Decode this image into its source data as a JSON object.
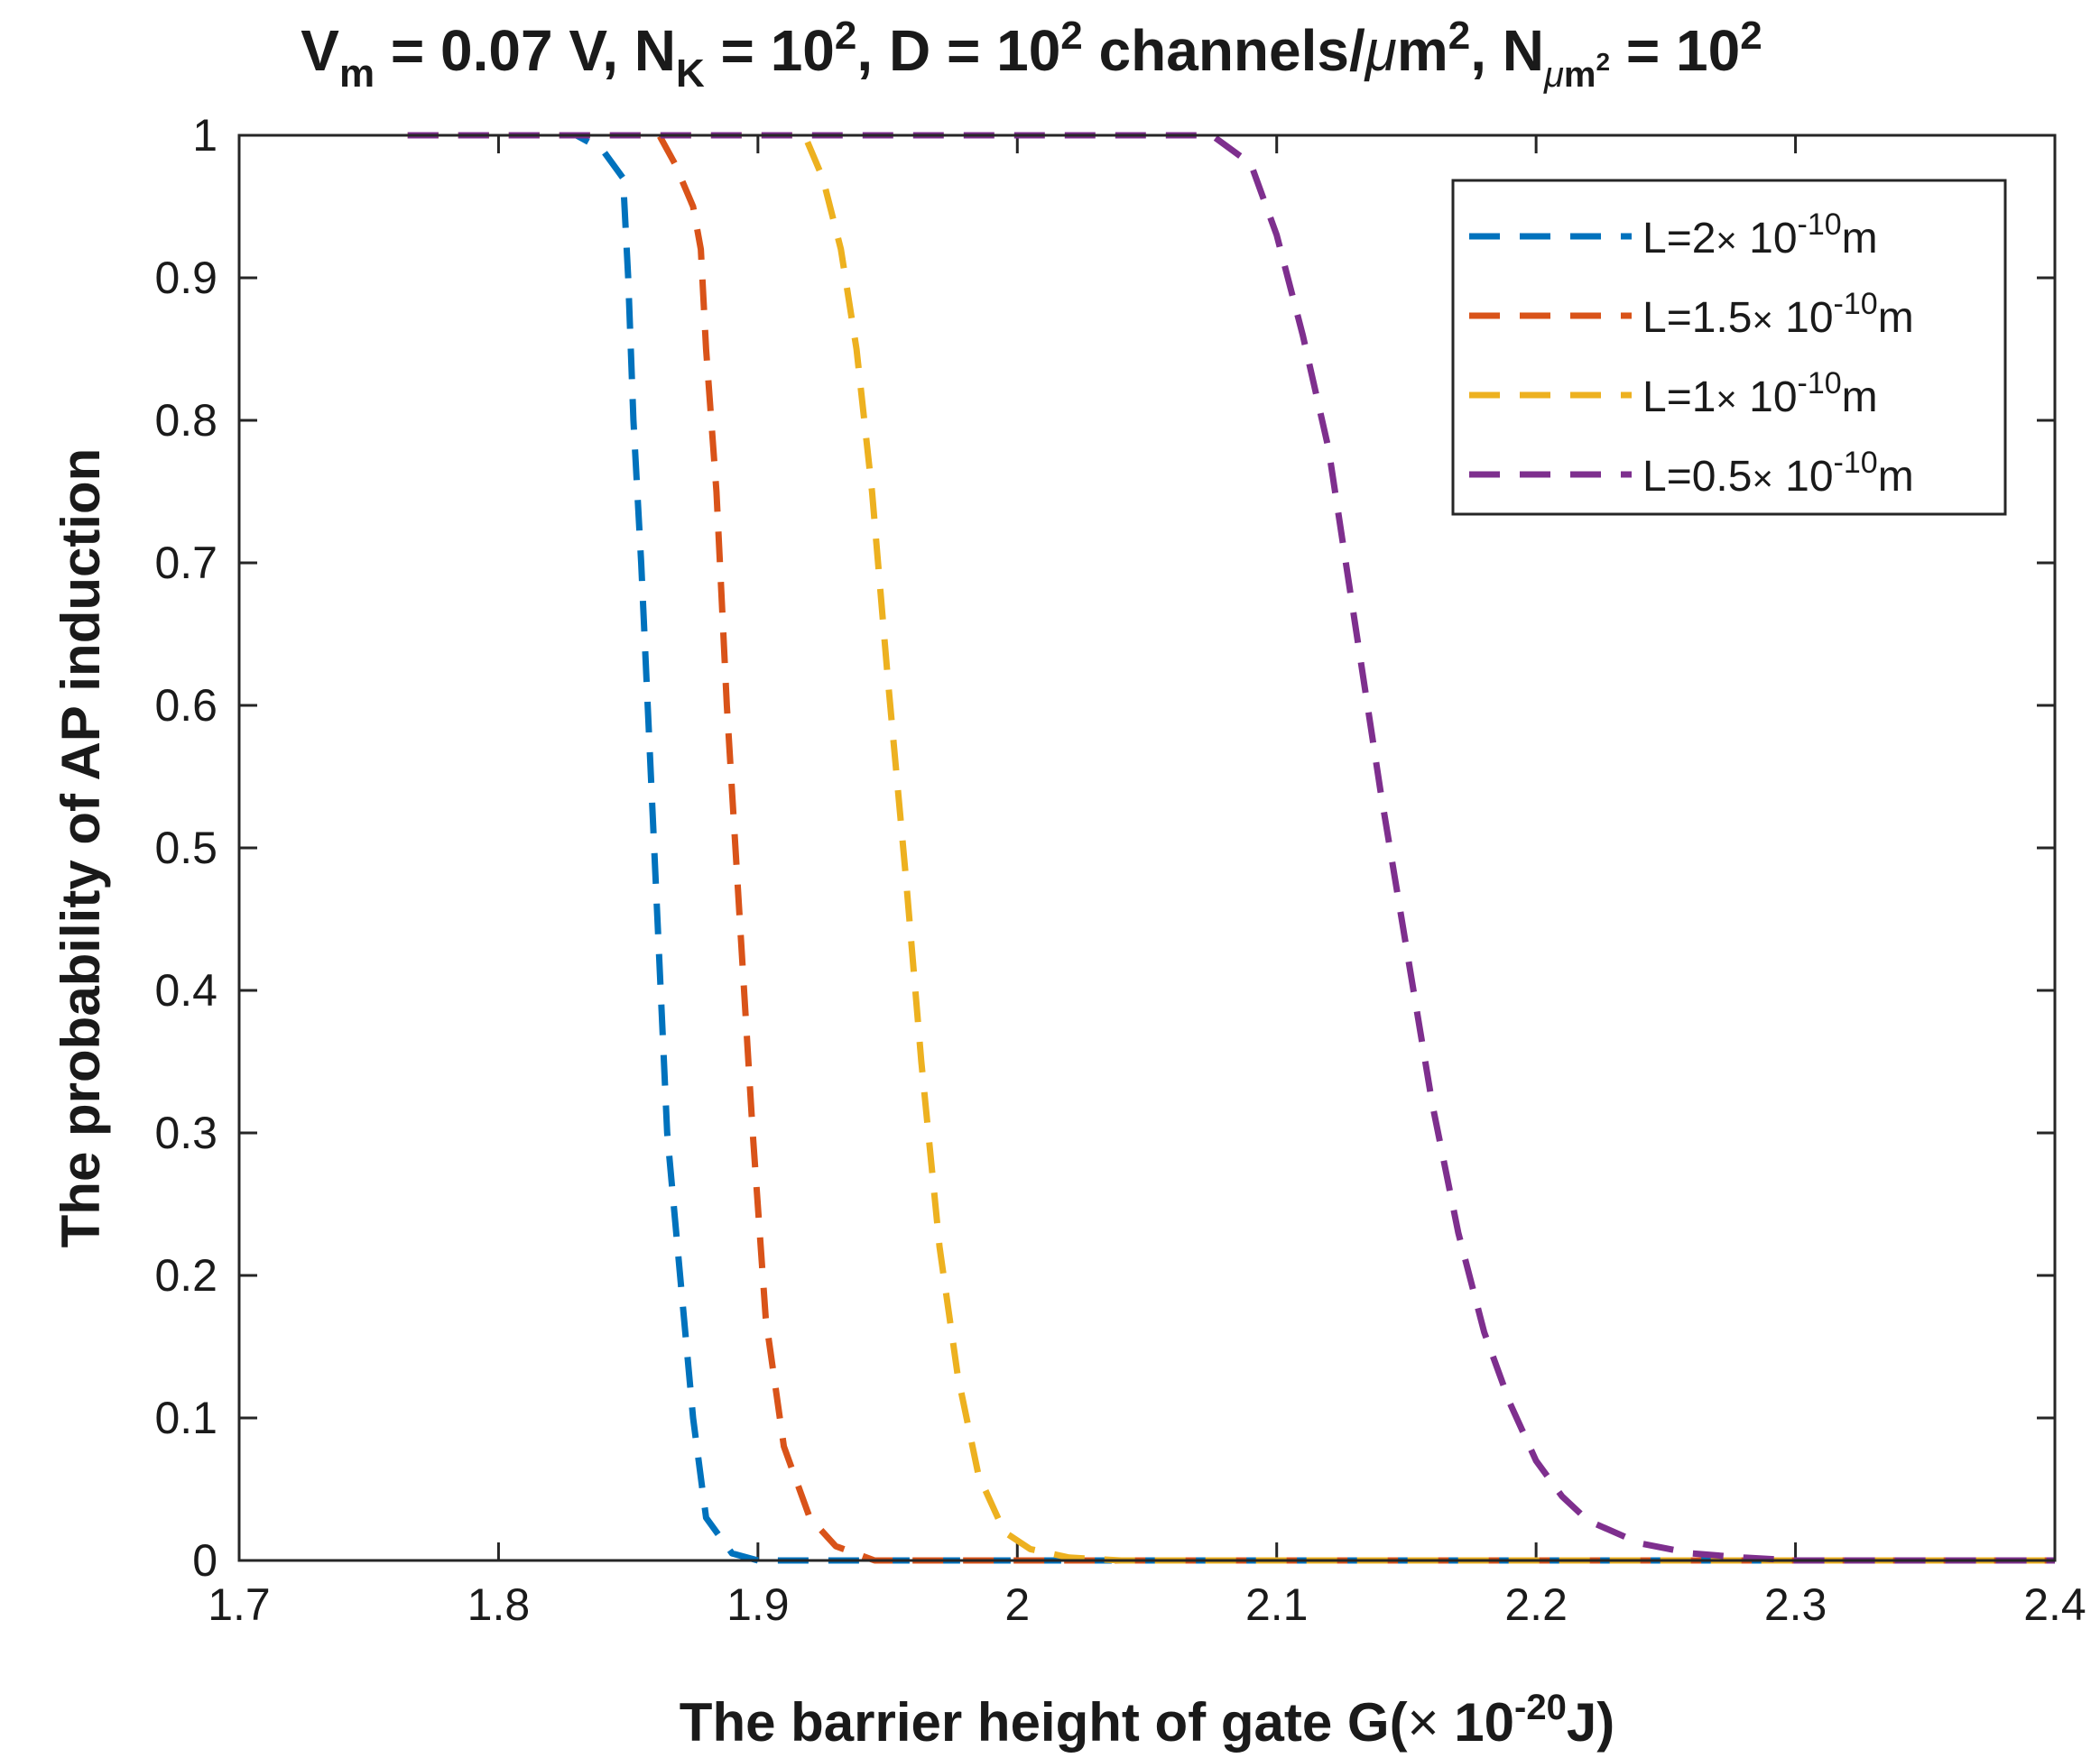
{
  "chart_data": {
    "type": "line",
    "title": {
      "p1": "V",
      "p1_sub": "m",
      "p2": " = 0.07 V, N",
      "p2_sub": "K",
      "p3": " = 10",
      "p3_sup": "2",
      "p4": ", D = 10",
      "p4_sup": "2",
      "p5": " channels/",
      "p5_mu": "μ",
      "p5_m": "m",
      "p5_sup": "2",
      "p6": ", N",
      "p6_sub_mu": "μ",
      "p6_sub_m": "m",
      "p6_sub_sup": "2",
      "p7": " = 10",
      "p7_sup": "2"
    },
    "xlabel": {
      "main": "The barrier height of gate G(",
      "times": "×",
      "base": " 10",
      "exp": "-20",
      "unit": "J)"
    },
    "ylabel": "The probability of AP induction",
    "xlim": [
      1.7,
      2.4
    ],
    "ylim": [
      0,
      1
    ],
    "x_ticks": [
      1.7,
      1.8,
      1.9,
      2.0,
      2.1,
      2.2,
      2.3,
      2.4
    ],
    "x_tick_labels": [
      "1.7",
      "1.8",
      "1.9",
      "2",
      "2.1",
      "2.2",
      "2.3",
      "2.4"
    ],
    "y_ticks": [
      0,
      0.1,
      0.2,
      0.3,
      0.4,
      0.5,
      0.6,
      0.7,
      0.8,
      0.9,
      1
    ],
    "y_tick_labels": [
      "0",
      "0.1",
      "0.2",
      "0.3",
      "0.4",
      "0.5",
      "0.6",
      "0.7",
      "0.8",
      "0.9",
      "1"
    ],
    "grid": false,
    "legend_position": "top-right",
    "series": [
      {
        "name": "L=2× 10^-10 m",
        "label_main": "L=2",
        "label_times": "×",
        "label_base": " 10",
        "label_exp": "-10",
        "label_unit": "m",
        "color": "#0072BD",
        "x": [
          1.765,
          1.83,
          1.84,
          1.848,
          1.85,
          1.852,
          1.855,
          1.86,
          1.865,
          1.87,
          1.875,
          1.88,
          1.89,
          1.9,
          2.4
        ],
        "y": [
          1.0,
          1.0,
          0.99,
          0.97,
          0.9,
          0.8,
          0.7,
          0.5,
          0.3,
          0.2,
          0.1,
          0.03,
          0.005,
          0.0,
          0.0
        ]
      },
      {
        "name": "L=1.5× 10^-10 m",
        "label_main": "L=1.5",
        "label_times": "×",
        "label_base": " 10",
        "label_exp": "-10",
        "label_unit": "m",
        "color": "#D95319",
        "x": [
          1.765,
          1.862,
          1.868,
          1.875,
          1.878,
          1.88,
          1.884,
          1.888,
          1.893,
          1.898,
          1.903,
          1.91,
          1.92,
          1.93,
          1.945,
          2.4
        ],
        "y": [
          1.0,
          1.0,
          0.98,
          0.95,
          0.92,
          0.85,
          0.75,
          0.6,
          0.45,
          0.3,
          0.17,
          0.08,
          0.03,
          0.01,
          0.0,
          0.0
        ]
      },
      {
        "name": "L=1× 10^-10 m",
        "label_main": "L=1",
        "label_times": "×",
        "label_base": " 10",
        "label_exp": "-10",
        "label_unit": "m",
        "color": "#EDB120",
        "x": [
          1.765,
          1.918,
          1.925,
          1.932,
          1.938,
          1.944,
          1.95,
          1.957,
          1.963,
          1.97,
          1.977,
          1.985,
          1.995,
          2.005,
          2.02,
          2.04,
          2.4
        ],
        "y": [
          1.0,
          1.0,
          0.97,
          0.92,
          0.85,
          0.75,
          0.62,
          0.48,
          0.35,
          0.22,
          0.13,
          0.06,
          0.02,
          0.008,
          0.002,
          0.0,
          0.0
        ]
      },
      {
        "name": "L=0.5× 10^-10 m",
        "label_main": "L=0.5",
        "label_times": "×",
        "label_base": " 10",
        "label_exp": "-10",
        "label_unit": "m",
        "color": "#7E2F8E",
        "x": [
          1.765,
          2.075,
          2.09,
          2.1,
          2.11,
          2.12,
          2.13,
          2.14,
          2.15,
          2.16,
          2.17,
          2.18,
          2.19,
          2.2,
          2.21,
          2.22,
          2.24,
          2.26,
          2.28,
          2.3,
          2.4
        ],
        "y": [
          1.0,
          1.0,
          0.98,
          0.93,
          0.86,
          0.78,
          0.66,
          0.54,
          0.43,
          0.32,
          0.23,
          0.16,
          0.11,
          0.07,
          0.045,
          0.028,
          0.012,
          0.005,
          0.002,
          0.0,
          0.0
        ]
      }
    ]
  }
}
